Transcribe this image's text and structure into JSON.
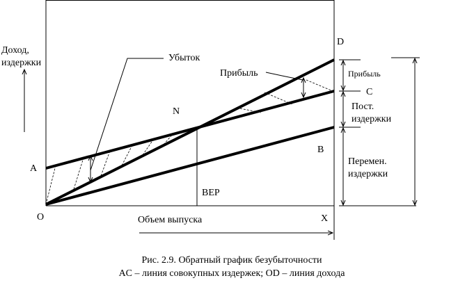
{
  "labels": {
    "y_axis_line1": "Доход,",
    "y_axis_line2": "издержки",
    "loss": "Убыток",
    "profit": "Прибыль",
    "profit_bracket": "Прибыль",
    "fixed_line1": "Пост.",
    "fixed_line2": "издержки",
    "variable_line1": "Перемен.",
    "variable_line2": "издержки",
    "point_d": "D",
    "point_c": "C",
    "point_b": "B",
    "point_a": "A",
    "point_o": "O",
    "point_x": "X",
    "point_n": "N",
    "bep": "BEP",
    "x_axis": "Объем выпуска"
  },
  "caption": {
    "line1": "Рис. 2.9. Обратный график безубыточности",
    "line2": "AC – линия совокупных издержек;  OD – линия дохода"
  }
}
